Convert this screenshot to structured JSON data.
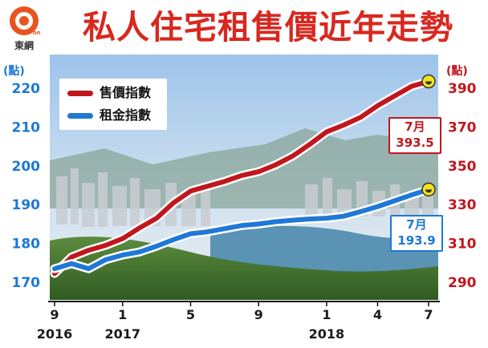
{
  "header": {
    "title": "私人住宅租售價近年走勢",
    "logo_text": "東網",
    "logo_mark": "on.cc"
  },
  "axes": {
    "left_unit": "(點)",
    "right_unit": "(點)"
  },
  "legend": [
    {
      "label": "售價指數",
      "color": "#c0171d"
    },
    {
      "label": "租金指數",
      "color": "#1e78d6"
    }
  ],
  "callouts": {
    "price_month": "7月",
    "price_value": "393.5",
    "rent_month": "7月",
    "rent_value": "193.9"
  },
  "colors": {
    "title": "#d8281f",
    "price_series": "#c0171d",
    "rent_series": "#1e78d6",
    "highlight_dot": "#f2e21e"
  },
  "chart_data": {
    "type": "line",
    "title": "私人住宅租售價近年走勢",
    "x": [
      "2016-09",
      "2016-10",
      "2016-11",
      "2016-12",
      "2017-01",
      "2017-02",
      "2017-03",
      "2017-04",
      "2017-05",
      "2017-06",
      "2017-07",
      "2017-08",
      "2017-09",
      "2017-10",
      "2017-11",
      "2017-12",
      "2018-01",
      "2018-02",
      "2018-03",
      "2018-04",
      "2018-05",
      "2018-06",
      "2018-07"
    ],
    "x_tick_labels": [
      {
        "x": "2016-09",
        "label": "9",
        "year": "2016"
      },
      {
        "x": "2017-01",
        "label": "1",
        "year": "2017"
      },
      {
        "x": "2017-05",
        "label": "5",
        "year": ""
      },
      {
        "x": "2017-09",
        "label": "9",
        "year": ""
      },
      {
        "x": "2018-01",
        "label": "1",
        "year": "2018"
      },
      {
        "x": "2018-04",
        "label": "4",
        "year": ""
      },
      {
        "x": "2018-07",
        "label": "7",
        "year": ""
      }
    ],
    "series": [
      {
        "name": "售價指數",
        "axis": "right",
        "values": [
          294.5,
          303.0,
          306.5,
          309.0,
          312.5,
          318.0,
          323.0,
          331.0,
          337.0,
          339.5,
          342.0,
          345.0,
          347.0,
          350.5,
          355.0,
          361.0,
          367.5,
          371.0,
          375.0,
          381.0,
          386.0,
          391.0,
          393.5
        ]
      },
      {
        "name": "租金指數",
        "axis": "left",
        "values": [
          173.5,
          174.8,
          173.5,
          175.8,
          177.0,
          177.8,
          179.3,
          181.0,
          182.5,
          183.0,
          183.8,
          184.6,
          185.0,
          185.6,
          186.0,
          186.3,
          186.5,
          187.0,
          188.2,
          189.5,
          191.0,
          192.5,
          193.9
        ]
      }
    ],
    "y_left": {
      "ylim": [
        170,
        220
      ],
      "ticks": [
        170,
        180,
        190,
        200,
        210,
        220
      ]
    },
    "y_right": {
      "ylim": [
        290,
        390
      ],
      "ticks": [
        290,
        310,
        330,
        350,
        370,
        390
      ]
    },
    "legend_position": "top-left",
    "grid": false
  }
}
